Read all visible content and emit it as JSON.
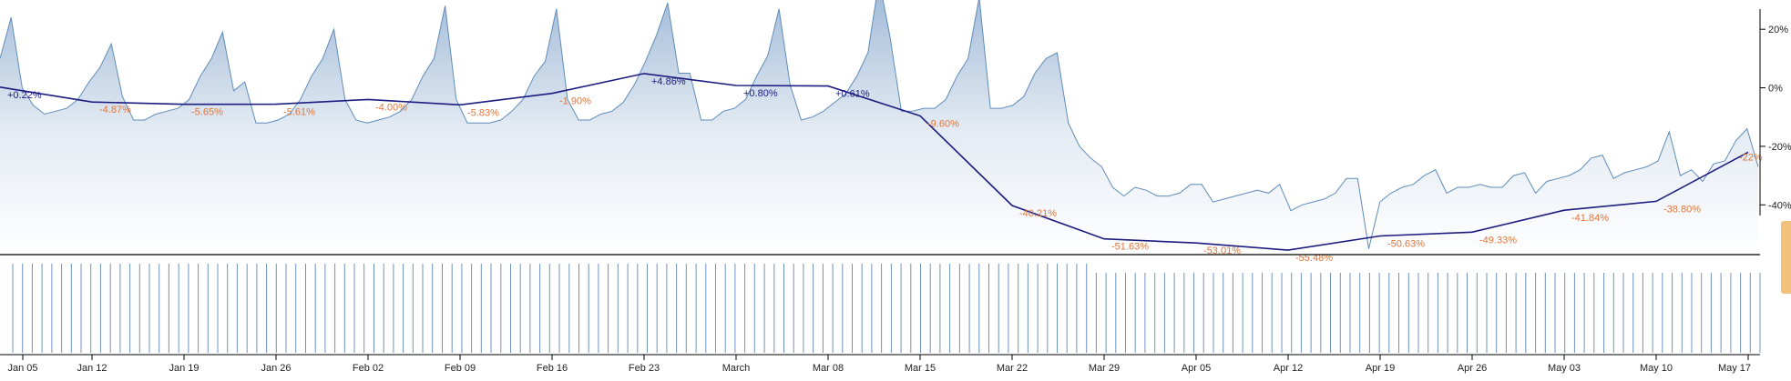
{
  "colors": {
    "area_fill_top": "#9cb7d6",
    "area_fill_bottom": "#ffffff",
    "area_stroke": "#5f8cb8",
    "trend_line": "#1c1c80",
    "label_negative": "#e0763a",
    "label_positive": "#1c1c80",
    "volume_bar": "#6d93bd",
    "axis": "#000000"
  },
  "chart_data": {
    "type": "area",
    "title": "",
    "xlabel": "",
    "ylabel": "",
    "ylim": [
      -57,
      30
    ],
    "y_ticks": [
      "20%",
      "0%",
      "-20%",
      "-40%"
    ],
    "y_tick_values": [
      20,
      0,
      -20,
      -40
    ],
    "x_tick_labels": [
      "Jan 05",
      "Jan 12",
      "Jan 19",
      "Jan 26",
      "Feb 02",
      "Feb 09",
      "Feb 16",
      "Feb 23",
      "March",
      "Mar 08",
      "Mar 15",
      "Mar 22",
      "Mar 29",
      "Apr 05",
      "Apr 12",
      "Apr 19",
      "Apr 26",
      "May 03",
      "May 10",
      "May 17"
    ],
    "daily_series": {
      "name": "",
      "values": [
        10,
        24,
        0,
        -6,
        -9,
        -8,
        -7,
        -4,
        2,
        7,
        15,
        -3,
        -11,
        -11,
        -9,
        -8,
        -7,
        -4,
        4,
        10,
        19,
        -1,
        2,
        -12,
        -12,
        -11,
        -9,
        -4,
        4,
        10,
        20,
        -4,
        -11,
        -12,
        -11,
        -10,
        -8,
        -4,
        4,
        10,
        28,
        -4,
        -12,
        -12,
        -12,
        -11,
        -8,
        -4,
        4,
        9,
        27,
        -4,
        -11,
        -11,
        -9,
        -8,
        -5,
        1,
        9,
        18,
        29,
        5,
        5,
        -11,
        -11,
        -8,
        -7,
        -4,
        4,
        11,
        27,
        1,
        -11,
        -10,
        -8,
        -5,
        -2,
        4,
        12,
        37,
        17,
        -8,
        -8,
        -7,
        -7,
        -4,
        4,
        10,
        31,
        -7,
        -7,
        -6,
        -3,
        5,
        10,
        12,
        -12,
        -20,
        -24,
        -27,
        -34,
        -37,
        -34,
        -35,
        -37,
        -37,
        -36,
        -33,
        -33,
        -39,
        -38,
        -37,
        -36,
        -35,
        -36,
        -33,
        -42,
        -40,
        -39,
        -38,
        -36,
        -31,
        -31,
        -55,
        -39,
        -36,
        -34,
        -33,
        -30,
        -28,
        -36,
        -34,
        -34,
        -33,
        -34,
        -34,
        -30,
        -29,
        -36,
        -32,
        -31,
        -30,
        -28,
        -24,
        -23,
        -31,
        -29,
        -28,
        -27,
        -25,
        -15,
        -30,
        -28,
        -32,
        -26,
        -25,
        -18,
        -14,
        -27
      ]
    },
    "weekly_series": {
      "name": "",
      "values": [
        0.22,
        -4.87,
        -5.65,
        -5.61,
        -4.0,
        -5.83,
        -1.9,
        4.86,
        0.8,
        0.61,
        -9.6,
        -40.21,
        -51.63,
        -53.01,
        -55.48,
        -50.63,
        -49.33,
        -41.84,
        -38.8,
        -22.0
      ],
      "labels": [
        "+0.22%",
        "-4.87%",
        "-5.65%",
        "-5.61%",
        "-4.00%",
        "-5.83%",
        "-1.90%",
        "+4.86%",
        "+0.80%",
        "+0.61%",
        "-9.60%",
        "-40.21%",
        "-51.63%",
        "-53.01%",
        "-55.48%",
        "-50.63%",
        "-49.33%",
        "-41.84%",
        "-38.80%",
        "-22%"
      ]
    },
    "volume_series": {
      "name": "",
      "values": [
        100,
        100,
        100,
        100,
        100,
        100,
        100,
        100,
        100,
        100,
        100,
        100,
        100,
        100,
        100,
        100,
        100,
        100,
        100,
        100,
        100,
        100,
        100,
        100,
        100,
        100,
        100,
        100,
        100,
        100,
        100,
        100,
        100,
        100,
        100,
        100,
        100,
        100,
        100,
        100,
        100,
        100,
        100,
        100,
        100,
        100,
        100,
        100,
        100,
        100,
        100,
        100,
        100,
        100,
        100,
        100,
        100,
        100,
        100,
        100,
        100,
        100,
        100,
        100,
        100,
        100,
        100,
        100,
        100,
        100,
        100,
        100,
        100,
        100,
        100,
        100,
        100,
        100,
        100,
        100,
        100,
        100,
        100,
        100,
        100,
        100,
        100,
        100,
        100,
        100,
        100,
        100,
        100,
        100,
        100,
        100,
        100,
        100,
        100,
        100,
        100,
        100,
        100,
        100,
        100,
        100,
        100,
        100,
        100,
        100,
        100,
        100,
        100,
        100,
        100,
        100,
        100,
        100,
        100,
        100,
        100,
        100,
        100,
        100,
        100,
        100,
        100,
        100,
        100,
        100,
        100,
        100,
        100,
        100,
        100,
        100,
        100,
        100,
        100,
        100,
        100,
        100,
        100,
        100,
        100,
        100,
        100,
        100,
        100,
        100,
        100,
        100,
        100,
        100,
        100,
        100,
        100,
        100,
        100,
        100,
        100,
        100,
        100,
        100,
        100,
        100,
        100,
        100,
        100,
        100,
        100,
        100,
        100,
        100,
        100,
        100,
        100,
        100,
        100,
        100
      ]
    },
    "grid": false,
    "legend": "none"
  }
}
